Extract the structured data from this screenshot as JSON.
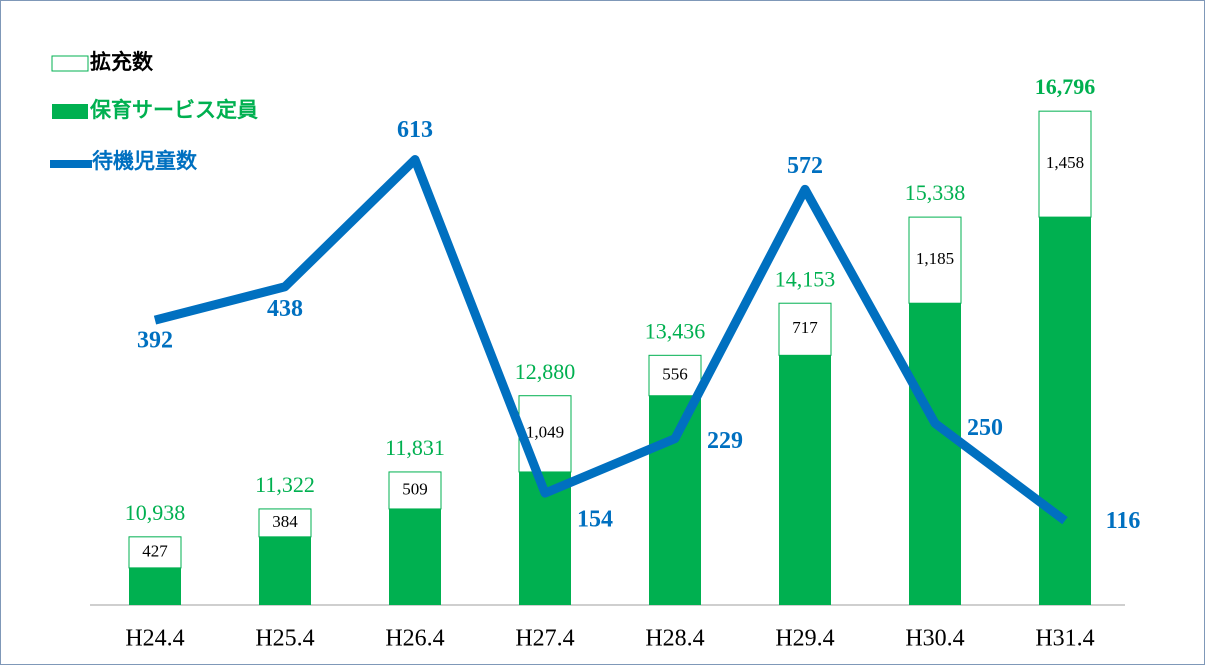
{
  "chart_data": {
    "type": "bar",
    "categories": [
      "H24.4",
      "H25.4",
      "H26.4",
      "H27.4",
      "H28.4",
      "H29.4",
      "H30.4",
      "H31.4"
    ],
    "series": [
      {
        "name": "保育サービス定員",
        "color": "#00b050",
        "values": [
          10511,
          10938,
          11322,
          11831,
          12880,
          13436,
          14153,
          15338
        ]
      },
      {
        "name": "拡充数",
        "color": "#ffffff",
        "outline": "#00b050",
        "values": [
          427,
          384,
          509,
          1049,
          556,
          717,
          1185,
          1458
        ],
        "value_labels": [
          "427",
          "384",
          "509",
          "1,049",
          "556",
          "717",
          "1,185",
          "1,458"
        ]
      },
      {
        "name": "待機児童数",
        "type": "line",
        "axis": "y2",
        "color": "#0070c0",
        "values": [
          392,
          438,
          613,
          154,
          229,
          572,
          250,
          116
        ]
      }
    ],
    "totals": [
      10938,
      11322,
      11831,
      12880,
      13436,
      14153,
      15338,
      16796
    ],
    "total_labels": [
      "10,938",
      "11,322",
      "11,831",
      "12,880",
      "13,436",
      "14,153",
      "15,338",
      "16,796"
    ],
    "ylim": [
      10000,
      17500
    ],
    "y2lim": [
      0,
      750
    ]
  }
}
